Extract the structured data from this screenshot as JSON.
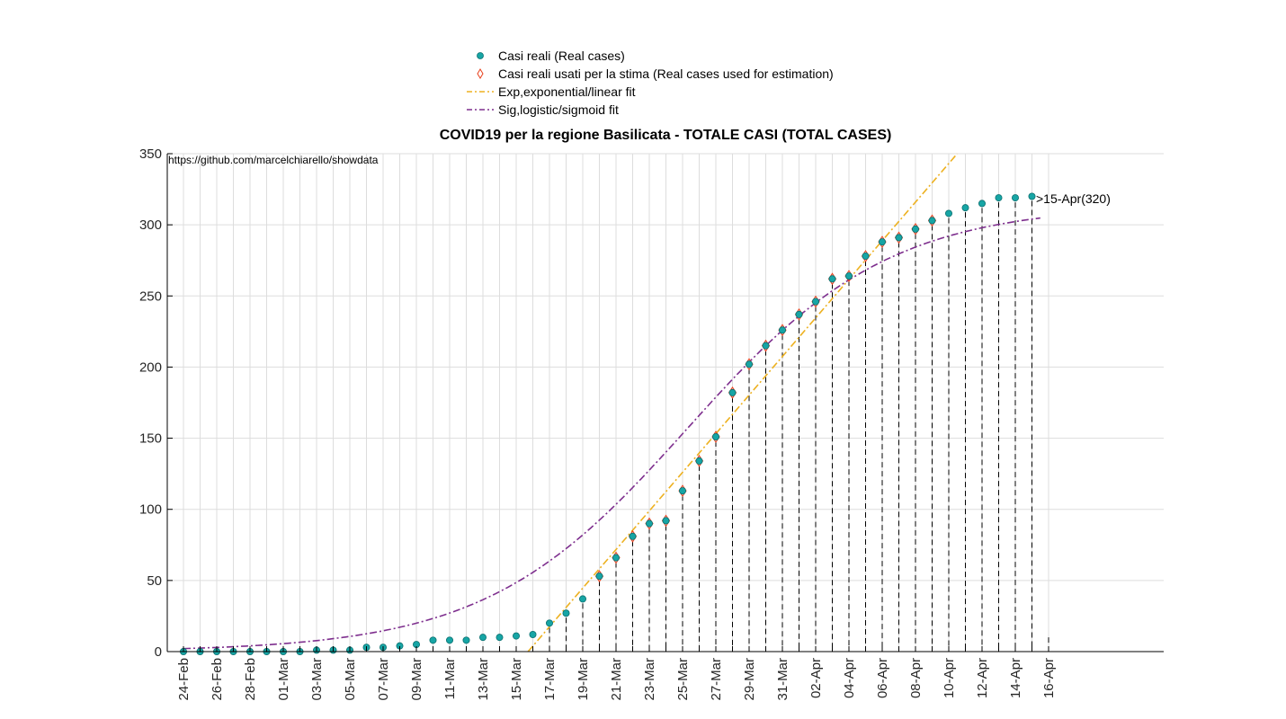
{
  "title": "COVID19 per la regione Basilicata - TOTALE CASI (TOTAL CASES)",
  "source_text": "https://github.com/marcelchiarello/showdata",
  "last_label": ">15-Apr(320)",
  "legend": [
    {
      "key": "real",
      "label": "Casi reali (Real cases)",
      "icon": "teal-dot-icon"
    },
    {
      "key": "used",
      "label": "Casi reali usati per la stima (Real cases used for estimation)",
      "icon": "red-diamond-icon"
    },
    {
      "key": "exp",
      "label": "Exp,exponential/linear fit",
      "icon": "orange-dashdot-line-icon"
    },
    {
      "key": "sig",
      "label": "Sig,logistic/sigmoid fit",
      "icon": "purple-dashdot-line-icon"
    }
  ],
  "colors": {
    "real": "#17a5a5",
    "used": "#e8401c",
    "exp": "#edb120",
    "sig": "#7e2f8e",
    "grid": "#dddddd",
    "axis": "#000000"
  },
  "chart_data": {
    "type": "scatter",
    "ylim": [
      0,
      350
    ],
    "yticks": [
      0,
      50,
      100,
      150,
      200,
      250,
      300,
      350
    ],
    "grid": true,
    "legend_position": "top-center",
    "x": [
      "24-Feb",
      "25-Feb",
      "26-Feb",
      "27-Feb",
      "28-Feb",
      "29-Feb",
      "01-Mar",
      "02-Mar",
      "03-Mar",
      "04-Mar",
      "05-Mar",
      "06-Mar",
      "07-Mar",
      "08-Mar",
      "09-Mar",
      "10-Mar",
      "11-Mar",
      "12-Mar",
      "13-Mar",
      "14-Mar",
      "15-Mar",
      "16-Mar",
      "17-Mar",
      "18-Mar",
      "19-Mar",
      "20-Mar",
      "21-Mar",
      "22-Mar",
      "23-Mar",
      "24-Mar",
      "25-Mar",
      "26-Mar",
      "27-Mar",
      "28-Mar",
      "29-Mar",
      "30-Mar",
      "31-Mar",
      "01-Apr",
      "02-Apr",
      "03-Apr",
      "04-Apr",
      "05-Apr",
      "06-Apr",
      "07-Apr",
      "08-Apr",
      "09-Apr",
      "10-Apr",
      "11-Apr",
      "12-Apr",
      "13-Apr",
      "14-Apr",
      "15-Apr",
      "16-Apr"
    ],
    "xtick_labels": [
      "24-Feb",
      "26-Feb",
      "28-Feb",
      "01-Mar",
      "03-Mar",
      "05-Mar",
      "07-Mar",
      "09-Mar",
      "11-Mar",
      "13-Mar",
      "15-Mar",
      "17-Mar",
      "19-Mar",
      "21-Mar",
      "23-Mar",
      "25-Mar",
      "27-Mar",
      "29-Mar",
      "31-Mar",
      "02-Apr",
      "04-Apr",
      "06-Apr",
      "08-Apr",
      "10-Apr",
      "12-Apr",
      "14-Apr",
      "16-Apr"
    ],
    "series": [
      {
        "name": "Casi reali (Real cases)",
        "values": [
          0,
          0,
          0,
          0,
          0,
          0,
          0,
          0,
          1,
          1,
          1,
          3,
          3,
          4,
          5,
          8,
          8,
          8,
          10,
          10,
          11,
          12,
          20,
          27,
          37,
          53,
          66,
          81,
          90,
          92,
          113,
          134,
          151,
          182,
          202,
          215,
          226,
          237,
          246,
          262,
          264,
          278,
          288,
          291,
          297,
          303,
          308,
          312,
          315,
          319,
          319,
          320
        ]
      },
      {
        "name": "Casi reali usati per la stima (Real cases used for estimation)",
        "start_index": 25,
        "values": [
          53,
          66,
          81,
          90,
          92,
          113,
          134,
          151,
          182,
          202,
          215,
          226,
          237,
          246,
          262,
          264,
          278,
          288,
          291,
          297,
          303
        ]
      }
    ]
  }
}
